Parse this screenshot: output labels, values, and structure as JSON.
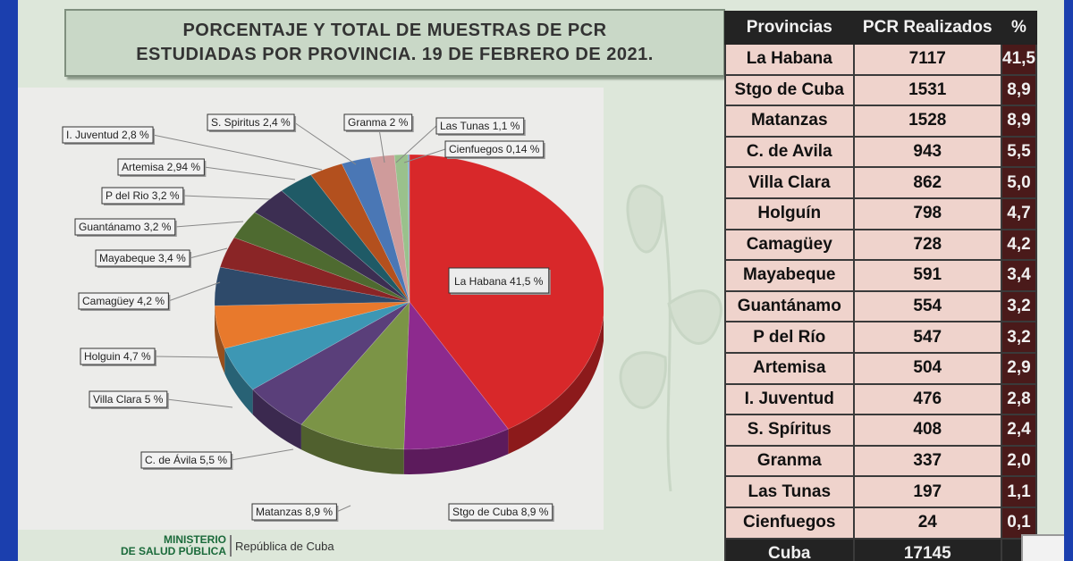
{
  "title": {
    "line1": "PORCENTAJE Y TOTAL DE MUESTRAS DE PCR",
    "line2": "ESTUDIADAS POR PROVINCIA.  19 DE FEBRERO DE 2021."
  },
  "footer": {
    "ministry_line1": "MINISTERIO",
    "ministry_line2": "DE SALUD PÚBLICA",
    "republic": "República de Cuba"
  },
  "colors": {
    "title_bg": "#c9d8c7",
    "header_bg": "#232323",
    "cell_bg": "#efd3cc",
    "pct_bg": "#4a1a1a"
  },
  "chart_data": {
    "type": "pie",
    "title": "",
    "slices": [
      {
        "label": "La Habana 41,5 %",
        "value": 41.5,
        "color": "#d8282a"
      },
      {
        "label": "Stgo de Cuba 8,9 %",
        "value": 8.9,
        "color": "#8d2a8e"
      },
      {
        "label": "Matanzas 8,9 %",
        "value": 8.9,
        "color": "#7b9446"
      },
      {
        "label": "C. de Ávila 5,5 %",
        "value": 5.5,
        "color": "#5a3f7a"
      },
      {
        "label": "Villa Clara 5 %",
        "value": 5.0,
        "color": "#3d97b4"
      },
      {
        "label": "Holguin 4,7 %",
        "value": 4.7,
        "color": "#e8792c"
      },
      {
        "label": "Camagüey 4,2 %",
        "value": 4.2,
        "color": "#2e4a6a"
      },
      {
        "label": "Mayabeque 3,4 %",
        "value": 3.4,
        "color": "#8a2526"
      },
      {
        "label": "Guantánamo 3,2 %",
        "value": 3.2,
        "color": "#4e6a30"
      },
      {
        "label": "P del Rio 3,2 %",
        "value": 3.2,
        "color": "#3c2e52"
      },
      {
        "label": "Artemisa 2,94 %",
        "value": 2.94,
        "color": "#1f5a66"
      },
      {
        "label": "I.  Juventud 2,8 %",
        "value": 2.8,
        "color": "#b3501e"
      },
      {
        "label": "S. Spiritus 2,4 %",
        "value": 2.4,
        "color": "#4a77b5"
      },
      {
        "label": "Granma 2 %",
        "value": 2.0,
        "color": "#cf9b9b"
      },
      {
        "label": "Las Tunas 1,1 %",
        "value": 1.1,
        "color": "#9ac18c"
      },
      {
        "label": "Cienfuegos 0,14 %",
        "value": 0.14,
        "color": "#7ba7d0"
      }
    ]
  },
  "table": {
    "headers": [
      "Provincias",
      "PCR Realizados",
      "%"
    ],
    "rows": [
      [
        "La Habana",
        "7117",
        "41,5"
      ],
      [
        "Stgo de Cuba",
        "1531",
        "8,9"
      ],
      [
        "Matanzas",
        "1528",
        "8,9"
      ],
      [
        "C. de Avila",
        "943",
        "5,5"
      ],
      [
        "Villa Clara",
        "862",
        "5,0"
      ],
      [
        "Holguín",
        "798",
        "4,7"
      ],
      [
        "Camagüey",
        "728",
        "4,2"
      ],
      [
        "Mayabeque",
        "591",
        "3,4"
      ],
      [
        "Guantánamo",
        "554",
        "3,2"
      ],
      [
        "P del Río",
        "547",
        "3,2"
      ],
      [
        "Artemisa",
        "504",
        "2,9"
      ],
      [
        "I.  Juventud",
        "476",
        "2,8"
      ],
      [
        "S. Spíritus",
        "408",
        "2,4"
      ],
      [
        "Granma",
        "337",
        "2,0"
      ],
      [
        "Las Tunas",
        "197",
        "1,1"
      ],
      [
        "Cienfuegos",
        "24",
        "0,1"
      ]
    ],
    "total": [
      "Cuba",
      "17145",
      ""
    ]
  }
}
